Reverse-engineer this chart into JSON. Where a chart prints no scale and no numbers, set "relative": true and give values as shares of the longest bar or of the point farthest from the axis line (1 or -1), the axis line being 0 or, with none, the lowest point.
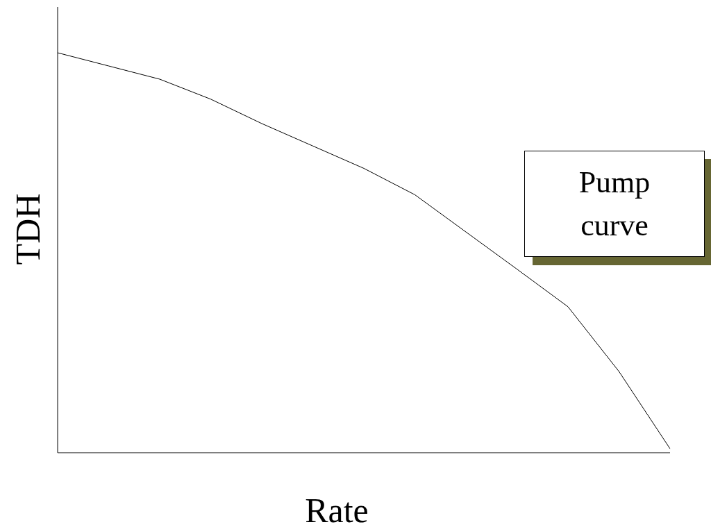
{
  "chart_data": {
    "type": "line",
    "relative": true,
    "xlabel": "Rate",
    "ylabel": "TDH",
    "annotations": [
      "Pump curve"
    ],
    "categories": [
      null,
      null,
      null,
      null,
      null,
      null,
      null,
      null,
      null,
      null,
      null,
      null,
      null
    ],
    "color": "#000000",
    "values": [
      1.0,
      0.967,
      0.934,
      0.884,
      0.823,
      0.767,
      0.711,
      0.645,
      0.552,
      0.459,
      0.365,
      0.203,
      0.01
    ]
  }
}
